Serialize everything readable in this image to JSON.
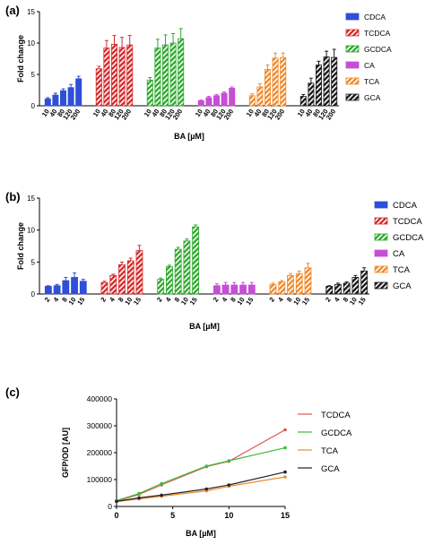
{
  "panels": {
    "a": {
      "label": "(a)"
    },
    "b": {
      "label": "(b)"
    },
    "c": {
      "label": "(c)"
    }
  },
  "chart_data": [
    {
      "type": "bar",
      "panel": "(a)",
      "ylabel": "Fold change",
      "xlabel": "BA [µM]",
      "ylim": [
        0,
        15
      ],
      "yticks": [
        0,
        5,
        10,
        15
      ],
      "legend_position": "right",
      "groups": [
        {
          "name": "CDCA",
          "color": "#2f4fd8",
          "pattern": "solid",
          "x": [
            "10",
            "40",
            "80",
            "120",
            "200"
          ],
          "values": [
            1.1,
            1.7,
            2.4,
            2.9,
            4.3
          ],
          "errors": [
            0.2,
            0.3,
            0.3,
            0.5,
            0.4
          ]
        },
        {
          "name": "TCDCA",
          "color": "#d72a2a",
          "pattern": "hatched",
          "x": [
            "10",
            "40",
            "80",
            "120",
            "200"
          ],
          "values": [
            5.9,
            9.2,
            9.8,
            9.3,
            9.7
          ],
          "errors": [
            0.4,
            1.2,
            1.4,
            1.6,
            1.5
          ]
        },
        {
          "name": "GCDCA",
          "color": "#2faa2f",
          "pattern": "hatched",
          "x": [
            "10",
            "40",
            "80",
            "120",
            "200"
          ],
          "values": [
            4.1,
            9.2,
            9.7,
            10.0,
            10.7
          ],
          "errors": [
            0.4,
            1.4,
            1.6,
            1.5,
            1.6
          ]
        },
        {
          "name": "CA",
          "color": "#c64ed6",
          "pattern": "solid",
          "x": [
            "10",
            "40",
            "80",
            "120",
            "200"
          ],
          "values": [
            0.8,
            1.3,
            1.6,
            2.0,
            2.8
          ],
          "errors": [
            0.1,
            0.2,
            0.2,
            0.2,
            0.2
          ]
        },
        {
          "name": "TCA",
          "color": "#ee8a2c",
          "pattern": "hatched",
          "x": [
            "10",
            "40",
            "80",
            "120",
            "200"
          ],
          "values": [
            1.6,
            3.0,
            5.8,
            7.6,
            7.7
          ],
          "errors": [
            0.3,
            0.5,
            0.7,
            0.8,
            0.7
          ]
        },
        {
          "name": "GCA",
          "color": "#1b1b1b",
          "pattern": "hatched",
          "x": [
            "10",
            "40",
            "80",
            "120",
            "200"
          ],
          "values": [
            1.5,
            3.6,
            6.5,
            7.8,
            7.7
          ],
          "errors": [
            0.3,
            0.8,
            0.6,
            0.9,
            1.3
          ]
        }
      ]
    },
    {
      "type": "bar",
      "panel": "(b)",
      "ylabel": "Fold change",
      "xlabel": "BA [µM]",
      "ylim": [
        0,
        15
      ],
      "yticks": [
        0,
        5,
        10,
        15
      ],
      "legend_position": "right",
      "groups": [
        {
          "name": "CDCA",
          "color": "#2f4fd8",
          "pattern": "solid",
          "x": [
            "2",
            "4",
            "8",
            "10",
            "15"
          ],
          "values": [
            1.2,
            1.3,
            2.1,
            2.6,
            2.0
          ],
          "errors": [
            0.1,
            0.2,
            0.5,
            0.7,
            0.3
          ]
        },
        {
          "name": "TCDCA",
          "color": "#d72a2a",
          "pattern": "hatched",
          "x": [
            "2",
            "4",
            "8",
            "10",
            "15"
          ],
          "values": [
            1.8,
            2.9,
            4.6,
            5.2,
            6.8
          ],
          "errors": [
            0.2,
            0.2,
            0.4,
            0.4,
            0.8
          ]
        },
        {
          "name": "GCDCA",
          "color": "#2faa2f",
          "pattern": "hatched",
          "x": [
            "2",
            "4",
            "8",
            "10",
            "15"
          ],
          "values": [
            2.3,
            4.3,
            7.0,
            8.3,
            10.5
          ],
          "errors": [
            0.2,
            0.2,
            0.3,
            0.3,
            0.3
          ]
        },
        {
          "name": "CA",
          "color": "#c64ed6",
          "pattern": "solid",
          "x": [
            "2",
            "4",
            "8",
            "10",
            "15"
          ],
          "values": [
            1.3,
            1.4,
            1.4,
            1.4,
            1.4
          ],
          "errors": [
            0.3,
            0.4,
            0.4,
            0.4,
            0.4
          ]
        },
        {
          "name": "TCA",
          "color": "#ee8a2c",
          "pattern": "hatched",
          "x": [
            "2",
            "4",
            "8",
            "10",
            "15"
          ],
          "values": [
            1.5,
            1.9,
            2.9,
            3.2,
            4.1
          ],
          "errors": [
            0.2,
            0.2,
            0.3,
            0.4,
            0.7
          ]
        },
        {
          "name": "GCA",
          "color": "#1b1b1b",
          "pattern": "hatched",
          "x": [
            "2",
            "4",
            "8",
            "10",
            "15"
          ],
          "values": [
            1.2,
            1.5,
            1.7,
            2.6,
            3.6
          ],
          "errors": [
            0.1,
            0.2,
            0.2,
            0.3,
            0.5
          ]
        }
      ]
    },
    {
      "type": "line",
      "panel": "(c)",
      "ylabel": "GFP/OD [AU]",
      "xlabel": "BA [µM]",
      "xlim": [
        0,
        15
      ],
      "ylim": [
        0,
        400000
      ],
      "xticks": [
        0,
        5,
        10,
        15
      ],
      "yticks": [
        0,
        100000,
        200000,
        300000,
        400000
      ],
      "ytick_labels": [
        "0",
        "100000",
        "200000",
        "300000",
        "400000"
      ],
      "legend_position": "right",
      "x": [
        0,
        2,
        4,
        8,
        10,
        15
      ],
      "series": [
        {
          "name": "TCDCA",
          "color": "#e05555",
          "values": [
            20000,
            45000,
            80000,
            148000,
            168000,
            285000
          ]
        },
        {
          "name": "GCDCA",
          "color": "#3dbb3d",
          "values": [
            22000,
            48000,
            85000,
            150000,
            170000,
            218000
          ]
        },
        {
          "name": "TCA",
          "color": "#ee8a2c",
          "values": [
            18000,
            28000,
            38000,
            58000,
            75000,
            110000
          ]
        },
        {
          "name": "GCA",
          "color": "#222222",
          "values": [
            19000,
            32000,
            42000,
            65000,
            80000,
            128000
          ]
        }
      ]
    }
  ]
}
